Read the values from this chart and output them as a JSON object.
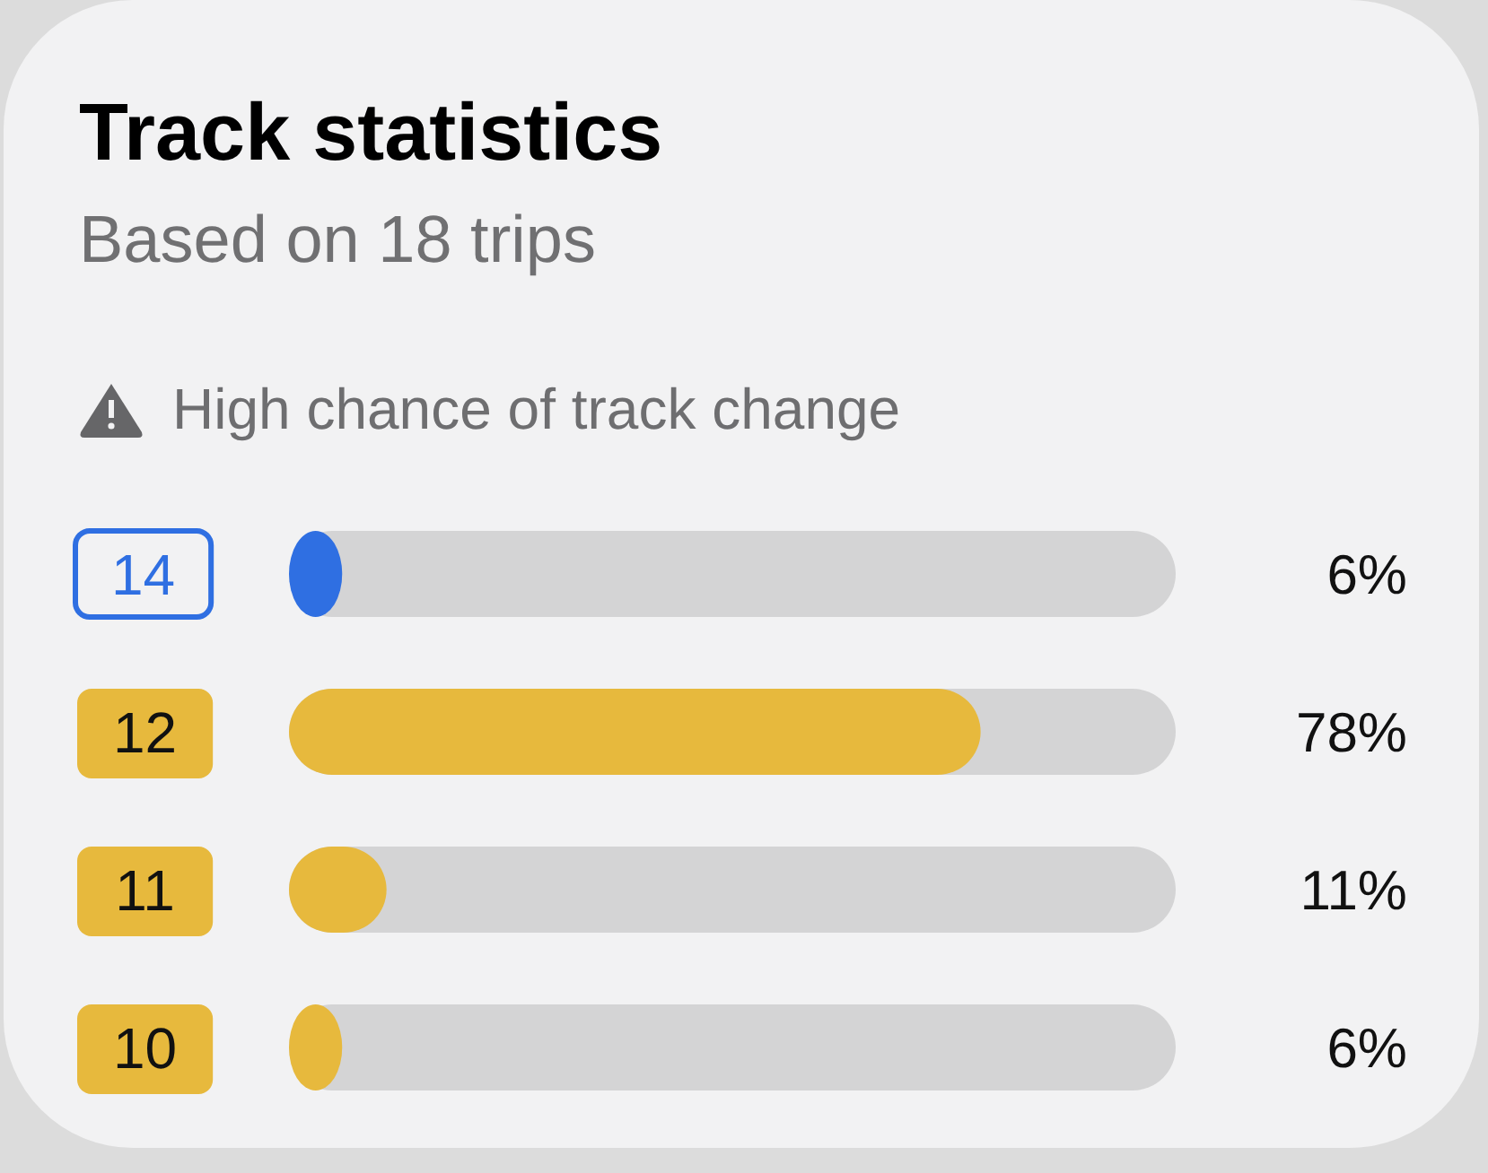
{
  "chart_data": {
    "type": "bar",
    "orientation": "horizontal",
    "title": "Track statistics",
    "subtitle": "Based on 18 trips",
    "annotations": [
      "High chance of track change"
    ],
    "categories": [
      "14",
      "12",
      "11",
      "10"
    ],
    "values": [
      6,
      78,
      11,
      6
    ],
    "colors": [
      "#2f6fe2",
      "#e7b93d",
      "#e7b93d",
      "#e7b93d"
    ],
    "value_labels": [
      "6%",
      "78%",
      "11%",
      "6%"
    ],
    "xlim": [
      0,
      100
    ],
    "tick_labels": "y"
  }
}
